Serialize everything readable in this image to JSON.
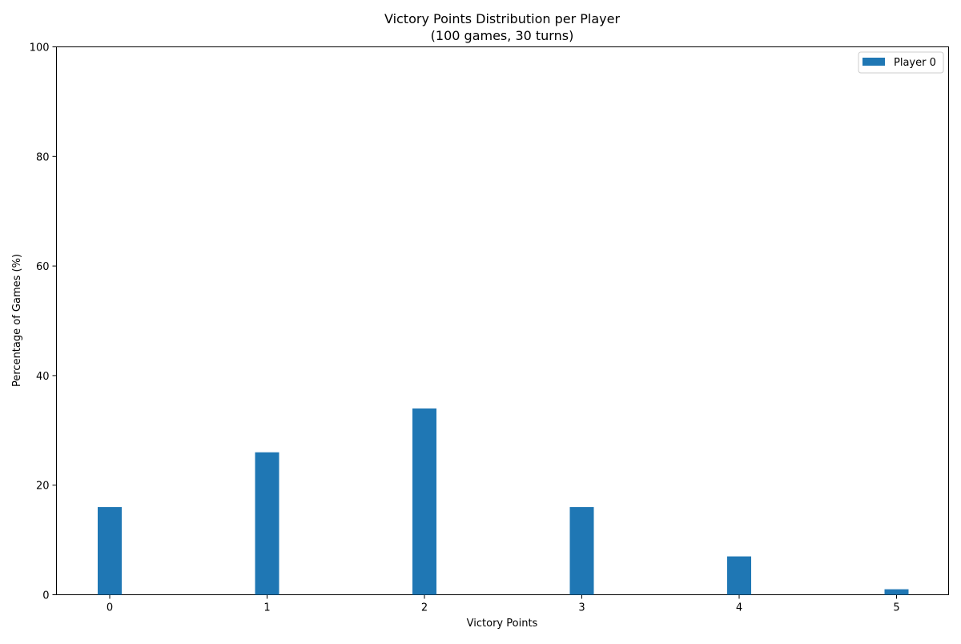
{
  "chart_data": {
    "type": "bar",
    "title": "Victory Points Distribution per Player",
    "subtitle": "(100 games, 30 turns)",
    "xlabel": "Victory Points",
    "ylabel": "Percentage of Games (%)",
    "categories": [
      "0",
      "1",
      "2",
      "3",
      "4",
      "5"
    ],
    "series": [
      {
        "name": "Player 0",
        "values": [
          16,
          26,
          34,
          16,
          7,
          1
        ],
        "color": "#1f77b4"
      }
    ],
    "ylim": [
      0,
      100
    ],
    "yticks": [
      "0",
      "20",
      "40",
      "60",
      "80",
      "100"
    ],
    "grid": false,
    "legend_position": "top-right"
  }
}
